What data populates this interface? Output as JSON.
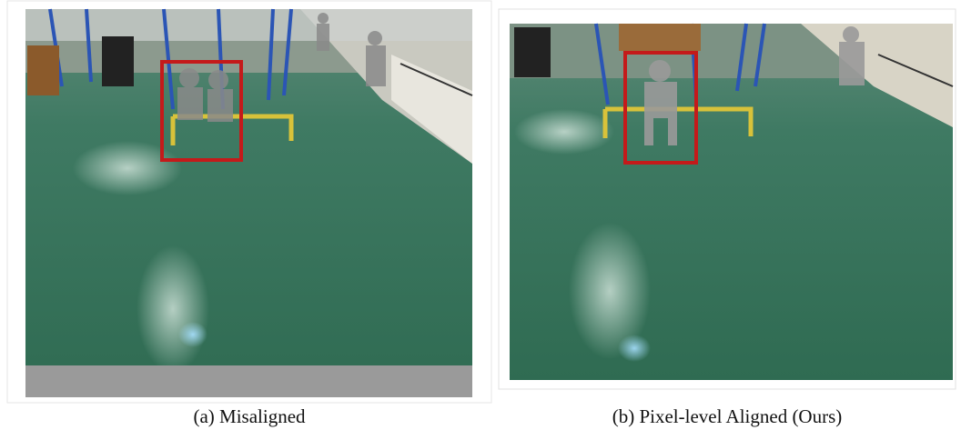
{
  "figure": {
    "panels": [
      {
        "caption": "(a) Misaligned"
      },
      {
        "caption": "(b) Pixel-level Aligned (Ours)"
      }
    ]
  }
}
